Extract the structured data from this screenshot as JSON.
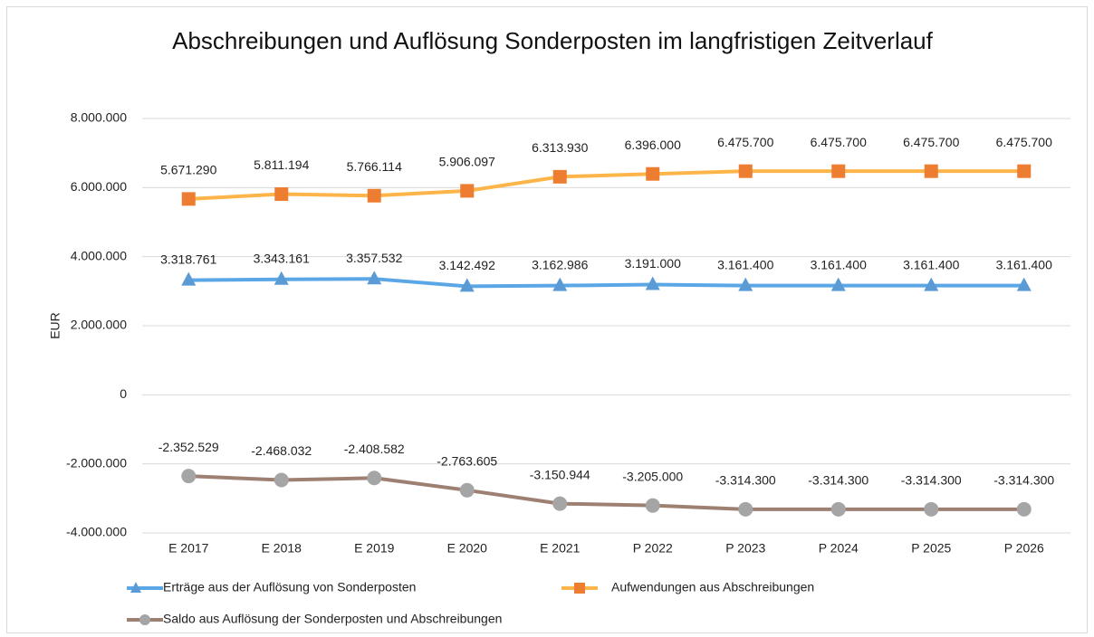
{
  "chart_data": {
    "type": "line",
    "title": "Abschreibungen und Auflösung Sonderposten im langfristigen Zeitverlauf",
    "y_label": "EUR",
    "categories": [
      "E 2017",
      "E 2018",
      "E 2019",
      "E 2020",
      "E 2021",
      "P 2022",
      "P 2023",
      "P 2024",
      "P 2025",
      "P 2026"
    ],
    "series": [
      {
        "name": "Erträge aus der Auflösung von Sonderposten",
        "color": "#5ba7e6",
        "marker_color": "#5b9bd5",
        "marker": "triangle",
        "values": [
          3318761,
          3343161,
          3357532,
          3142492,
          3162986,
          3191000,
          3161400,
          3161400,
          3161400,
          3161400
        ],
        "value_labels": [
          "3.318.761",
          "3.343.161",
          "3.357.532",
          "3.142.492",
          "3.162.986",
          "3.191.000",
          "3.161.400",
          "3.161.400",
          "3.161.400",
          "3.161.400"
        ]
      },
      {
        "name": "Aufwendungen aus Abschreibungen",
        "color": "#fdb54a",
        "marker_color": "#ed7d31",
        "marker": "square",
        "values": [
          5671290,
          5811194,
          5766114,
          5906097,
          6313930,
          6396000,
          6475700,
          6475700,
          6475700,
          6475700
        ],
        "value_labels": [
          "5.671.290",
          "5.811.194",
          "5.766.114",
          "5.906.097",
          "6.313.930",
          "6.396.000",
          "6.475.700",
          "6.475.700",
          "6.475.700",
          "6.475.700"
        ]
      },
      {
        "name": "Saldo aus Auflösung der Sonderposten und Abschreibungen",
        "color": "#9e8073",
        "marker_color": "#a5a5a5",
        "marker": "circle",
        "values": [
          -2352529,
          -2468032,
          -2408582,
          -2763605,
          -3150944,
          -3205000,
          -3314300,
          -3314300,
          -3314300,
          -3314300
        ],
        "value_labels": [
          "-2.352.529",
          "-2.468.032",
          "-2.408.582",
          "-2.763.605",
          "-3.150.944",
          "-3.205.000",
          "-3.314.300",
          "-3.314.300",
          "-3.314.300",
          "-3.314.300"
        ]
      }
    ],
    "ylim": [
      -4000000,
      8000000
    ],
    "yticks": [
      {
        "value": -4000000,
        "label": "-4.000.000"
      },
      {
        "value": -2000000,
        "label": "-2.000.000"
      },
      0,
      {
        "value": 2000000,
        "label": "2.000.000"
      },
      {
        "value": 4000000,
        "label": "4.000.000"
      },
      {
        "value": 6000000,
        "label": "6.000.000"
      },
      {
        "value": 8000000,
        "label": "8.000.000"
      }
    ],
    "grid": true,
    "legend": "bottom"
  }
}
